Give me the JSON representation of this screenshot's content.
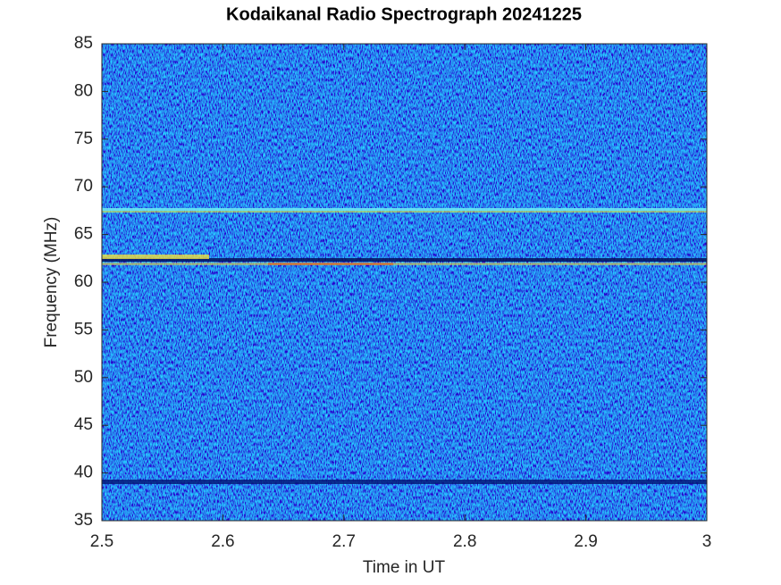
{
  "chart_data": {
    "type": "spectrogram",
    "title": "Kodaikanal Radio Spectrograph  20241225",
    "x_label": "Time in UT",
    "y_label": "Frequency (MHz)",
    "xlim": [
      2.5,
      3
    ],
    "xticks": [
      2.5,
      2.6,
      2.7,
      2.8,
      2.9,
      3
    ],
    "ylim": [
      35,
      85
    ],
    "yticks": [
      35,
      40,
      45,
      50,
      55,
      60,
      65,
      70,
      75,
      80,
      85
    ]
  }
}
